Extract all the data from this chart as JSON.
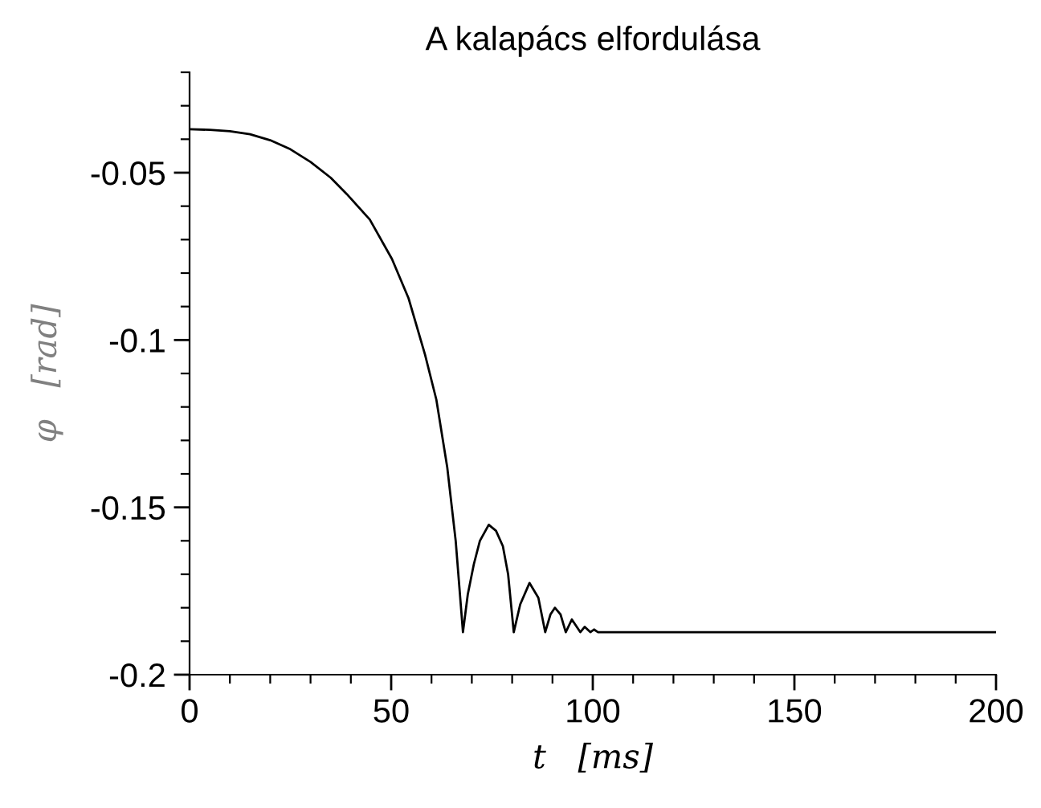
{
  "chart_data": {
    "type": "line",
    "title": "A kalapács elfordulása",
    "xlabel": "t   [ms]",
    "ylabel": "φ   [rad]",
    "series": [
      {
        "color": "#000000",
        "x": [
          0,
          5,
          10,
          15,
          20,
          25,
          30,
          35,
          39,
          44.7,
          50.2,
          54.3,
          58.4,
          61.2,
          63.9,
          66,
          67.8,
          69,
          70.5,
          72,
          74.2,
          76,
          77.7,
          79,
          80.4,
          82,
          84.3,
          86.5,
          88.2,
          89.5,
          90.6,
          92,
          93.3,
          94.8,
          96.9,
          98,
          99.4,
          100.3,
          101.3,
          102.4,
          200
        ],
        "values": [
          -0.037,
          -0.0372,
          -0.0376,
          -0.0385,
          -0.0403,
          -0.043,
          -0.0468,
          -0.0515,
          -0.0564,
          -0.064,
          -0.0758,
          -0.0875,
          -0.1044,
          -0.1178,
          -0.138,
          -0.16,
          -0.1873,
          -0.176,
          -0.167,
          -0.16,
          -0.1552,
          -0.157,
          -0.1616,
          -0.17,
          -0.1873,
          -0.179,
          -0.1726,
          -0.177,
          -0.1873,
          -0.182,
          -0.18,
          -0.182,
          -0.1873,
          -0.1835,
          -0.1873,
          -0.1857,
          -0.1873,
          -0.1865,
          -0.1873,
          -0.1873,
          -0.1873
        ]
      }
    ],
    "xlim": [
      0,
      200
    ],
    "xticks": [
      0,
      50,
      100,
      150,
      200
    ],
    "ylim": [
      -0.2,
      -0.02
    ],
    "yticks": [
      -0.2,
      -0.15,
      -0.1,
      -0.05
    ],
    "grid": false,
    "legend": false,
    "marker": "none",
    "line_style": "solid"
  }
}
